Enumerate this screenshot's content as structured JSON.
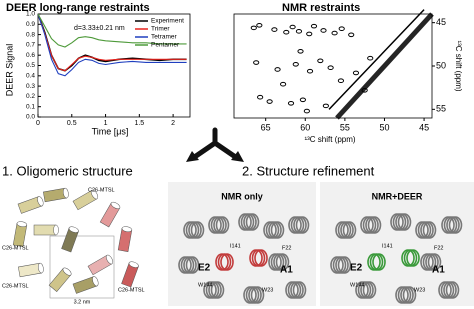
{
  "chart_data": [
    {
      "type": "line",
      "title": "DEER long-range restraints",
      "ylabel": "DEER Signal",
      "xlabel": "Time [μs]",
      "annotation": "d=3.33±0.21 nm",
      "x": [
        0,
        0.1,
        0.2,
        0.3,
        0.4,
        0.5,
        0.6,
        0.7,
        0.8,
        0.9,
        1.0,
        1.2,
        1.4,
        1.6,
        1.8,
        2.0,
        2.2
      ],
      "series": [
        {
          "name": "Experiment",
          "color": "#000000",
          "values": [
            1.0,
            0.82,
            0.6,
            0.47,
            0.45,
            0.5,
            0.57,
            0.6,
            0.58,
            0.55,
            0.54,
            0.56,
            0.57,
            0.56,
            0.55,
            0.56,
            0.56
          ]
        },
        {
          "name": "Trimer",
          "color": "#e8231d",
          "values": [
            1.0,
            0.81,
            0.6,
            0.47,
            0.45,
            0.51,
            0.57,
            0.59,
            0.58,
            0.56,
            0.55,
            0.56,
            0.56,
            0.56,
            0.56,
            0.56,
            0.56
          ]
        },
        {
          "name": "Tetramer",
          "color": "#1f3fbf",
          "values": [
            1.0,
            0.8,
            0.56,
            0.42,
            0.4,
            0.46,
            0.53,
            0.56,
            0.55,
            0.52,
            0.51,
            0.53,
            0.54,
            0.53,
            0.53,
            0.53,
            0.53
          ]
        },
        {
          "name": "Pentamer",
          "color": "#4e9a3a",
          "values": [
            1.0,
            0.88,
            0.76,
            0.7,
            0.68,
            0.72,
            0.77,
            0.78,
            0.77,
            0.75,
            0.74,
            0.73,
            0.72,
            0.72,
            0.71,
            0.71,
            0.71
          ]
        }
      ],
      "xlim": [
        0,
        2.25
      ],
      "xticks": [
        0,
        0.5,
        1,
        1.5,
        2
      ],
      "ylim": [
        0,
        1.0
      ],
      "yticks": [
        {
          "value": 0,
          "label": "0.0"
        },
        0.1,
        0.2,
        0.3,
        0.4,
        0.5,
        0.6,
        0.7,
        0.8,
        0.9,
        {
          "value": 1,
          "label": "1.0"
        }
      ],
      "legend": "top-right"
    },
    {
      "type": "scatter",
      "title": "NMR  restraints",
      "xlabel": "¹³C shift (ppm)",
      "ylabel": "¹³C shift (ppm)",
      "color": "#000000",
      "x": [
        66.5,
        65.8,
        63.9,
        62.4,
        61.6,
        60.8,
        59.5,
        58.9,
        57.7,
        56.3,
        55.4,
        54.2,
        66.2,
        63.5,
        61.2,
        59.4,
        58.1,
        56.8,
        55.5,
        53.6,
        65.7,
        64.5,
        61.8,
        60.3,
        59.8,
        57.4,
        52.5,
        51.8,
        62.8,
        60.6
      ],
      "y": [
        45.6,
        45.3,
        45.8,
        46.1,
        45.5,
        46.0,
        46.3,
        45.4,
        45.9,
        46.2,
        45.7,
        46.4,
        49.6,
        50.4,
        49.8,
        50.6,
        49.4,
        50.2,
        51.7,
        50.8,
        53.6,
        54.1,
        54.3,
        53.9,
        55.2,
        54.6,
        52.8,
        49.1,
        52.1,
        48.3
      ],
      "xlim": [
        69,
        44
      ],
      "xticks": [
        65,
        60,
        55,
        50,
        45
      ],
      "ylim": [
        56,
        44
      ],
      "yticks": [
        45,
        50,
        55
      ]
    }
  ],
  "figure": {
    "headings": [
      "1. Oligomeric structure",
      "2. Structure refinement"
    ],
    "oligomer_labels": [
      "C26-MTSL",
      "C26-MTSL",
      "C26-MTSL",
      "C26-MTSL",
      "3.2 nm"
    ],
    "refinement": [
      {
        "title": "NMR only",
        "labels": [
          "E2",
          "A1",
          "I141",
          "F22",
          "W144",
          "W23"
        ]
      },
      {
        "title": "NMR+DEER",
        "labels": [
          "E2",
          "A1",
          "I141",
          "F22",
          "W144",
          "W23"
        ]
      }
    ]
  }
}
